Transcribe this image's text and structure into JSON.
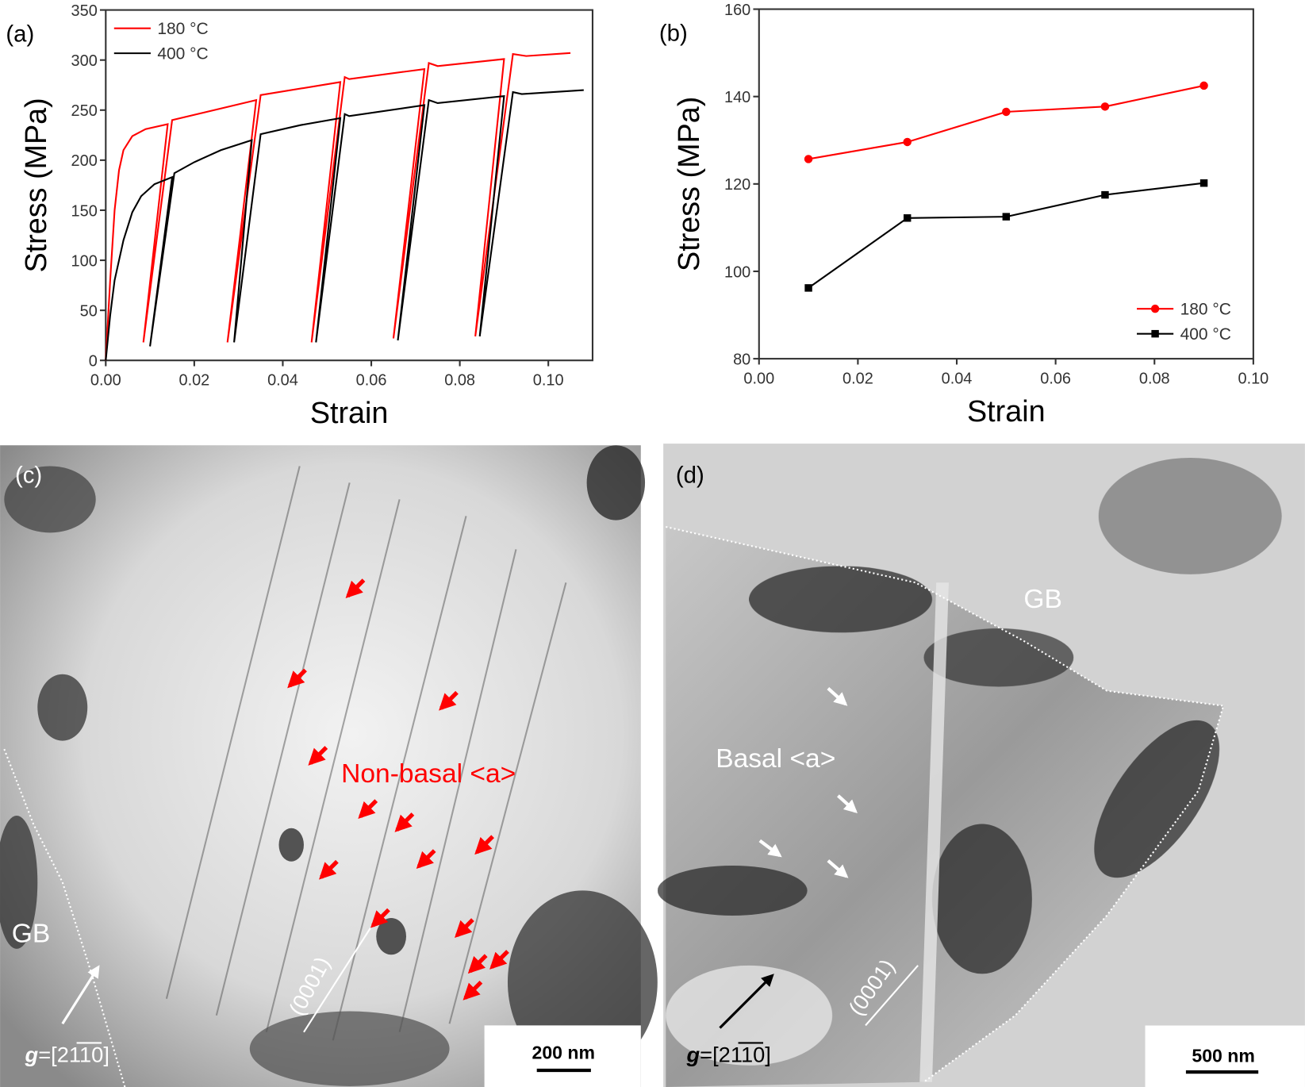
{
  "chart_data": [
    {
      "panel_label": "(a)",
      "type": "line",
      "xlabel": "Strain",
      "ylabel": "Stress (MPa)",
      "xlim": [
        0,
        0.11
      ],
      "ylim": [
        0,
        350
      ],
      "xticks": [
        "0.00",
        "0.02",
        "0.04",
        "0.06",
        "0.08",
        "0.10"
      ],
      "yticks": [
        "0",
        "50",
        "100",
        "150",
        "200",
        "250",
        "300",
        "350"
      ],
      "legend_position": "top-left",
      "series": [
        {
          "name": "180 °C",
          "color": "#ff0000",
          "points": [
            [
              0,
              0
            ],
            [
              0.001,
              80
            ],
            [
              0.002,
              150
            ],
            [
              0.003,
              190
            ],
            [
              0.004,
              210
            ],
            [
              0.006,
              224
            ],
            [
              0.009,
              231
            ],
            [
              0.014,
              236
            ],
            [
              0.0085,
              18
            ],
            [
              0.015,
              240
            ],
            [
              0.034,
              260
            ],
            [
              0.0275,
              18
            ],
            [
              0.035,
              265
            ],
            [
              0.053,
              278
            ],
            [
              0.0465,
              18
            ],
            [
              0.054,
              283
            ],
            [
              0.055,
              281
            ],
            [
              0.072,
              291
            ],
            [
              0.065,
              22
            ],
            [
              0.073,
              297
            ],
            [
              0.075,
              294
            ],
            [
              0.09,
              301
            ],
            [
              0.0835,
              24
            ],
            [
              0.092,
              306
            ],
            [
              0.095,
              304
            ],
            [
              0.105,
              307
            ]
          ]
        },
        {
          "name": "400 °C",
          "color": "#000000",
          "points": [
            [
              0,
              0
            ],
            [
              0.001,
              45
            ],
            [
              0.002,
              80
            ],
            [
              0.004,
              120
            ],
            [
              0.006,
              148
            ],
            [
              0.008,
              164
            ],
            [
              0.011,
              176
            ],
            [
              0.015,
              183
            ],
            [
              0.01,
              14
            ],
            [
              0.0155,
              187
            ],
            [
              0.02,
              198
            ],
            [
              0.026,
              210
            ],
            [
              0.033,
              220
            ],
            [
              0.029,
              18
            ],
            [
              0.035,
              226
            ],
            [
              0.044,
              235
            ],
            [
              0.053,
              242
            ],
            [
              0.0475,
              18
            ],
            [
              0.054,
              246
            ],
            [
              0.055,
              244
            ],
            [
              0.072,
              255
            ],
            [
              0.066,
              20
            ],
            [
              0.073,
              260
            ],
            [
              0.075,
              257
            ],
            [
              0.09,
              264
            ],
            [
              0.0845,
              24
            ],
            [
              0.092,
              268
            ],
            [
              0.094,
              266
            ],
            [
              0.108,
              270
            ]
          ]
        }
      ]
    },
    {
      "panel_label": "(b)",
      "type": "line",
      "xlabel": "Strain",
      "ylabel": "Stress (MPa)",
      "xlim": [
        0,
        0.1
      ],
      "ylim": [
        80,
        160
      ],
      "xticks": [
        "0.00",
        "0.02",
        "0.04",
        "0.06",
        "0.08",
        "0.10"
      ],
      "yticks": [
        "80",
        "100",
        "120",
        "140",
        "160"
      ],
      "legend_position": "bottom-right",
      "x": [
        0.01,
        0.03,
        0.05,
        0.07,
        0.09
      ],
      "series": [
        {
          "name": "180 °C",
          "color": "#ff0000",
          "marker": "circle",
          "values": [
            125.7,
            129.6,
            136.5,
            137.7,
            142.5
          ]
        },
        {
          "name": "400 °C",
          "color": "#000000",
          "marker": "square",
          "values": [
            96.2,
            112.2,
            112.5,
            117.5,
            120.2
          ]
        }
      ]
    }
  ],
  "micrographs": {
    "c": {
      "panel_label": "(c)",
      "annotation": "Non-basal <a>",
      "annotation_color": "#ff0000",
      "gb": "GB",
      "plane": "(0001)",
      "g_prefix": "g",
      "g_vector": "=[2110]",
      "scale_bar": "200 nm"
    },
    "d": {
      "panel_label": "(d)",
      "annotation": "Basal <a>",
      "annotation_color": "#ffffff",
      "gb": "GB",
      "plane": "(0001)",
      "g_prefix": "g",
      "g_vector": "=[2110]",
      "scale_bar": "500 nm"
    }
  }
}
